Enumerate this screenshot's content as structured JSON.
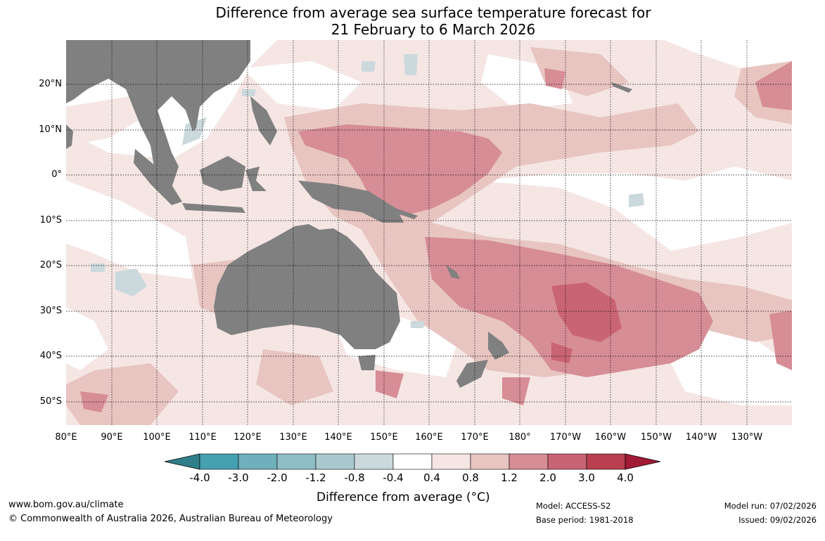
{
  "title": {
    "line1": "Difference from average sea surface temperature forecast for",
    "line2": "21 February to 6 March 2026"
  },
  "map": {
    "lat_labels": [
      "20°N",
      "10°N",
      "0°",
      "10°S",
      "20°S",
      "30°S",
      "40°S",
      "50°S"
    ],
    "lon_labels": [
      "80°E",
      "90°E",
      "100°E",
      "110°E",
      "120°E",
      "130°E",
      "140°E",
      "150°E",
      "160°E",
      "170°E",
      "180°",
      "170°W",
      "160°W",
      "150°W",
      "140°W",
      "130°W"
    ],
    "land_color": "#808080",
    "grid_style": "dotted"
  },
  "legend": {
    "tick_labels": [
      "-4.0",
      "-3.0",
      "-2.0",
      "-1.2",
      "-0.8",
      "-0.4",
      "0.4",
      "0.8",
      "1.2",
      "2.0",
      "3.0",
      "4.0"
    ],
    "colors": [
      "#2f7f8a",
      "#45a0b0",
      "#6fb0bd",
      "#8fbdc6",
      "#a9c9cf",
      "#cbd9dc",
      "#ffffff",
      "#f5e6e4",
      "#e8c5c1",
      "#d78d96",
      "#c96475",
      "#b8404f",
      "#a11b35"
    ],
    "title": "Difference from average (°C)"
  },
  "footer": {
    "url": "www.bom.gov.au/climate",
    "copyright": "© Commonwealth of Australia 2026, Australian Bureau of Meteorology",
    "model": "Model: ACCESS-S2",
    "base_period": "Base period: 1981-2018",
    "model_run": "Model run: 07/02/2026",
    "issued": "Issued: 09/02/2026"
  }
}
